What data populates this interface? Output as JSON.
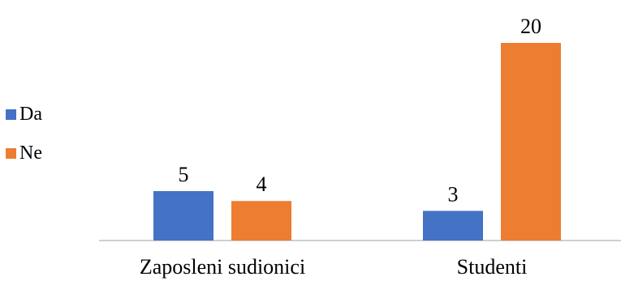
{
  "chart_data": {
    "type": "bar",
    "categories": [
      "Zaposleni sudionici",
      "Studenti"
    ],
    "series": [
      {
        "name": "Da",
        "values": [
          5,
          3
        ],
        "color": "#4472C4"
      },
      {
        "name": "Ne",
        "values": [
          4,
          20
        ],
        "color": "#ED7D31"
      }
    ],
    "ylim": [
      0,
      20
    ],
    "grid": false,
    "legend_position": "left",
    "axis_color": "#BFBFBF"
  }
}
